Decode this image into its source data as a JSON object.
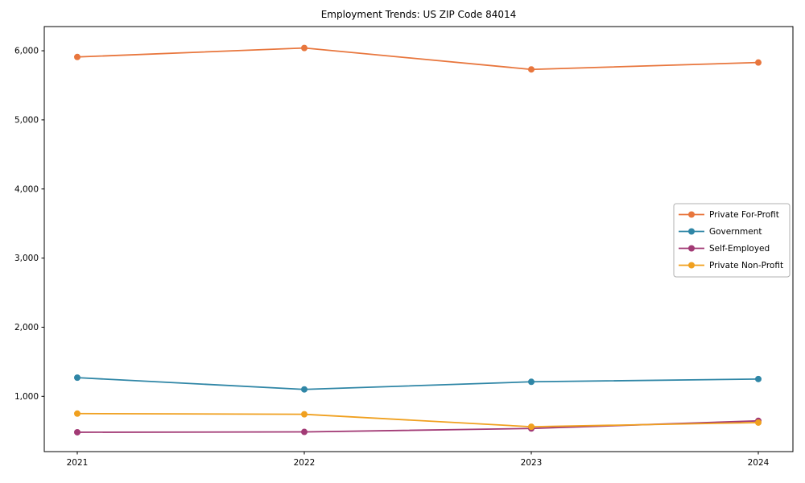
{
  "figure": {
    "title": "Employment Trends: US ZIP Code 84014",
    "background_color": "#ffffff",
    "axes_color": "#000000",
    "legend_border_color": "#b0b0b0"
  },
  "chart_data": {
    "type": "line",
    "title": "Employment Trends: US ZIP Code 84014",
    "xlabel": "",
    "ylabel": "",
    "grid": false,
    "x_categories": [
      "2021",
      "2022",
      "2023",
      "2024"
    ],
    "series": [
      {
        "name": "Private For-Profit",
        "color": "#e8763d",
        "marker": "circle",
        "values": [
          5910,
          6040,
          5730,
          5830
        ]
      },
      {
        "name": "Government",
        "color": "#2f86a6",
        "marker": "circle",
        "values": [
          1270,
          1100,
          1210,
          1250
        ]
      },
      {
        "name": "Self-Employed",
        "color": "#a23a75",
        "marker": "circle",
        "values": [
          480,
          485,
          535,
          645
        ]
      },
      {
        "name": "Private Non-Profit",
        "color": "#f0a01f",
        "marker": "circle",
        "values": [
          750,
          740,
          560,
          620
        ]
      }
    ],
    "yticks": {
      "values": [
        1000,
        2000,
        3000,
        4000,
        5000,
        6000
      ],
      "labels": [
        "1,000",
        "2,000",
        "3,000",
        "4,000",
        "5,000",
        "6,000"
      ]
    },
    "ylim": [
      200,
      6350
    ],
    "legend": {
      "position": "center right",
      "entries": [
        "Private For-Profit",
        "Government",
        "Self-Employed",
        "Private Non-Profit"
      ]
    }
  }
}
